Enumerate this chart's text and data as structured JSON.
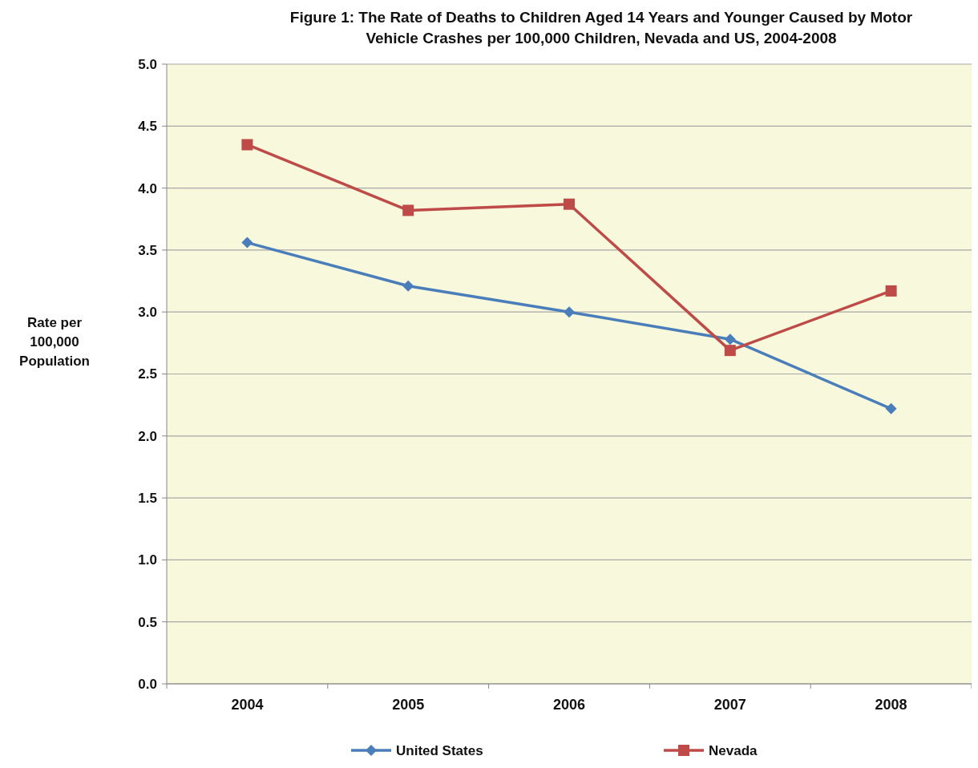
{
  "chart_data": {
    "type": "line",
    "title": "Figure 1: The Rate of Deaths to Children Aged 14 Years and Younger Caused by Motor Vehicle Crashes per 100,000 Children, Nevada and US, 2004-2008",
    "ylabel": "Rate per 100,000 Population",
    "categories": [
      "2004",
      "2005",
      "2006",
      "2007",
      "2008"
    ],
    "series": [
      {
        "name": "United States",
        "color": "#4a7ebb",
        "marker": "diamond",
        "values": [
          3.56,
          3.21,
          3.0,
          2.78,
          2.22
        ]
      },
      {
        "name": "Nevada",
        "color": "#be4b48",
        "marker": "square",
        "values": [
          4.35,
          3.82,
          3.87,
          2.69,
          3.17
        ]
      }
    ],
    "ylim": [
      0,
      5
    ],
    "yticks": [
      {
        "value": 0,
        "label": "0.0"
      },
      {
        "value": 0.5,
        "label": "0.5"
      },
      {
        "value": 1,
        "label": "1.0"
      },
      {
        "value": 1.5,
        "label": "1.5"
      },
      {
        "value": 2,
        "label": "2.0"
      },
      {
        "value": 2.5,
        "label": "2.5"
      },
      {
        "value": 3,
        "label": "3.0"
      },
      {
        "value": 3.5,
        "label": "3.5"
      },
      {
        "value": 4,
        "label": "4.0"
      },
      {
        "value": 4.5,
        "label": "4.5"
      },
      {
        "value": 5,
        "label": "5.0"
      }
    ],
    "grid": "y",
    "legend": "bottom"
  }
}
